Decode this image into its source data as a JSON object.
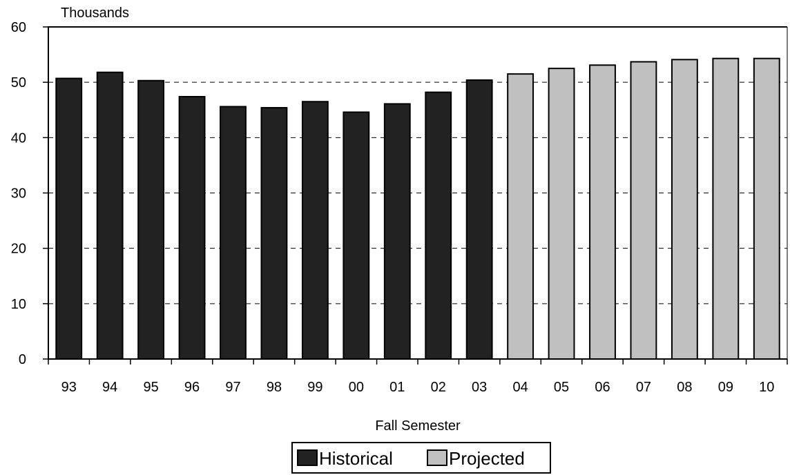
{
  "chart_data": {
    "type": "bar",
    "ylabel": "Thousands",
    "xlabel": "Fall Semester",
    "ylim": [
      0,
      60
    ],
    "yticks": [
      "0",
      "10",
      "20",
      "30",
      "40",
      "50",
      "60"
    ],
    "grid": true,
    "legend_position": "bottom-center",
    "categories": [
      "93",
      "94",
      "95",
      "96",
      "97",
      "98",
      "99",
      "00",
      "01",
      "02",
      "03",
      "04",
      "05",
      "06",
      "07",
      "08",
      "09",
      "10"
    ],
    "series": [
      {
        "name": "Historical",
        "color": "#222222",
        "values": [
          50.7,
          51.8,
          50.3,
          47.4,
          45.6,
          45.4,
          46.5,
          44.6,
          46.1,
          48.2,
          50.4,
          null,
          null,
          null,
          null,
          null,
          null,
          null
        ]
      },
      {
        "name": "Projected",
        "color": "#c0c0c0",
        "values": [
          null,
          null,
          null,
          null,
          null,
          null,
          null,
          null,
          null,
          null,
          null,
          51.5,
          52.5,
          53.1,
          53.7,
          54.1,
          54.3,
          54.3
        ]
      }
    ]
  }
}
